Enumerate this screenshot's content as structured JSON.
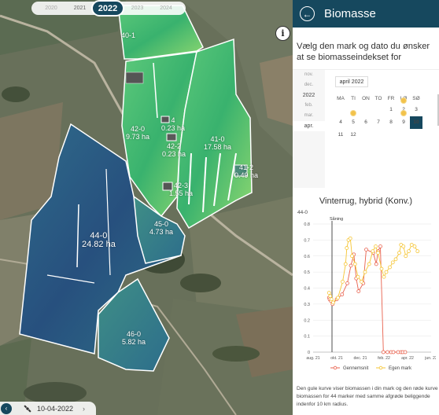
{
  "map": {
    "years": [
      "2020",
      "2021",
      "2022",
      "2023",
      "2024"
    ],
    "selected_year": "2022",
    "date": "10-04-2022",
    "info_label": "i",
    "fields": [
      {
        "id": "40-1",
        "area": ""
      },
      {
        "id": "42-0",
        "area": "9.73 ha"
      },
      {
        "id": "4",
        "area": "0.23 ha"
      },
      {
        "id": "42-2",
        "area": "0.23 ha"
      },
      {
        "id": "41-0",
        "area": "17.58 ha"
      },
      {
        "id": "41-2",
        "area": "0.49 ha"
      },
      {
        "id": "42-3",
        "area": "1.55 ha"
      },
      {
        "id": "45-0",
        "area": "4.73 ha"
      },
      {
        "id": "44-0",
        "area": "24.82 ha"
      },
      {
        "id": "46-0",
        "area": "5.82 ha"
      }
    ]
  },
  "panel": {
    "title": "Biomasse",
    "instruction": "Vælg den mark og dato du ønsker at se biomasseindekset for",
    "calendar": {
      "year_column": [
        "nov.",
        "dec.",
        "2022",
        "feb.",
        "mar.",
        "apr."
      ],
      "selected_month_entry": "apr.",
      "month_button": "april 2022",
      "weekdays": [
        "MA",
        "TI",
        "ON",
        "TO",
        "FR",
        "LØ",
        "SØ"
      ],
      "weeks": [
        [
          "",
          "",
          "",
          "",
          "1",
          "2",
          "3"
        ],
        [
          "4",
          "5",
          "6",
          "7",
          "8",
          "9",
          "10"
        ],
        [
          "11",
          "12",
          "",
          "",
          "",
          "",
          ""
        ]
      ],
      "selected_day": "10",
      "satellite_days": [
        "2",
        "5",
        "9"
      ]
    },
    "crop_title": "Vinterrug, hybrid (Konv.)",
    "footer_note": "Den gule kurve viser biomassen i din mark og den røde kurve biomassen for 44 marker med samme afgrøde beliggende indenfor 10 km radius."
  },
  "chart_data": {
    "type": "line",
    "title": "Vinterrug, hybrid (Konv.)",
    "ylabel": "",
    "xlabel": "",
    "ylim": [
      0,
      0.8
    ],
    "y_top_label": "44-0",
    "yticks": [
      "0",
      "0.1",
      "0.2",
      "0.3",
      "0.4",
      "0.5",
      "0.6",
      "0.7",
      "0.8"
    ],
    "xlim": [
      0,
      10
    ],
    "xticks": [
      {
        "value": 0,
        "label": "aug. 21"
      },
      {
        "value": 2,
        "label": "okt. 21"
      },
      {
        "value": 4,
        "label": "dec. 21"
      },
      {
        "value": 6,
        "label": "feb. 22"
      },
      {
        "value": 8,
        "label": "apr. 22"
      },
      {
        "value": 10,
        "label": "jun. 22"
      }
    ],
    "annotations": [
      {
        "label": "Såning",
        "x": 1.6
      }
    ],
    "legend": [
      "Gennemsnit",
      "Egen mark"
    ],
    "legend_position": "bottom",
    "colors": {
      "gennemsnit": "#e8604c",
      "egen_mark": "#f5c533"
    },
    "series": [
      {
        "name": "Gennemsnit",
        "x": [
          1.35,
          1.4,
          1.5,
          1.65,
          2.0,
          2.45,
          2.9,
          3.2,
          3.45,
          3.65,
          3.85,
          4.25,
          4.5,
          5.1,
          5.35,
          5.5,
          5.7,
          5.95,
          6.3,
          6.6,
          6.8,
          7.2,
          7.45,
          7.6,
          7.8
        ],
        "y": [
          0.34,
          0.33,
          0.32,
          0.3,
          0.33,
          0.36,
          0.43,
          0.54,
          0.61,
          0.46,
          0.38,
          0.43,
          0.64,
          0.62,
          0.55,
          0.63,
          0.66,
          0.0,
          0.0,
          0.0,
          0.0,
          0.0,
          0.0,
          0.0,
          0.0
        ]
      },
      {
        "name": "Egen mark",
        "x": [
          1.35,
          1.45,
          1.55,
          1.7,
          2.1,
          2.5,
          2.75,
          2.85,
          3.0,
          3.15,
          3.3,
          3.55,
          3.8,
          4.1,
          4.4,
          4.75,
          5.05,
          5.3,
          5.5,
          5.8,
          6.0,
          6.2,
          6.5,
          6.75,
          7.0,
          7.3,
          7.45,
          7.65,
          7.85,
          8.1,
          8.35,
          8.6,
          8.85
        ],
        "y": [
          0.37,
          0.35,
          0.33,
          0.31,
          0.34,
          0.44,
          0.55,
          0.65,
          0.7,
          0.71,
          0.6,
          0.55,
          0.47,
          0.44,
          0.5,
          0.55,
          0.63,
          0.66,
          0.62,
          0.52,
          0.47,
          0.5,
          0.53,
          0.56,
          0.58,
          0.62,
          0.67,
          0.66,
          0.6,
          0.63,
          0.67,
          0.66,
          0.63
        ]
      }
    ]
  }
}
